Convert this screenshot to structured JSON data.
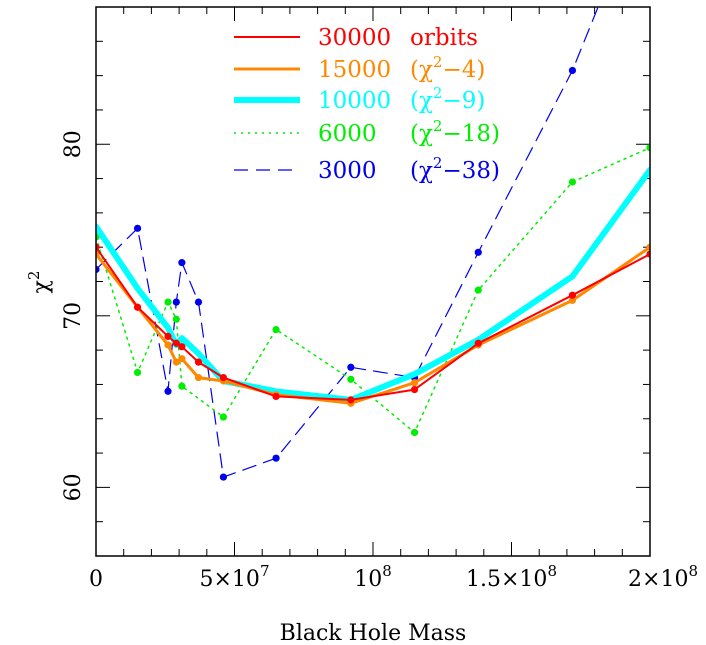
{
  "chart_data": {
    "type": "line",
    "title": "",
    "xlabel": "Black Hole Mass",
    "ylabel_base": "χ",
    "ylabel_sup": "2",
    "xlim": [
      0,
      200000000
    ],
    "ylim": [
      56,
      88
    ],
    "x_ticks": [
      {
        "value": 0,
        "base": "0",
        "exp": ""
      },
      {
        "value": 50000000,
        "base": "5×10",
        "exp": "7"
      },
      {
        "value": 100000000,
        "base": "10",
        "exp": "8"
      },
      {
        "value": 150000000,
        "base": "1.5×10",
        "exp": "8"
      },
      {
        "value": 200000000,
        "base": "2×10",
        "exp": "8"
      }
    ],
    "y_ticks": [
      {
        "value": 60,
        "label": "60"
      },
      {
        "value": 70,
        "label": "70"
      },
      {
        "value": 80,
        "label": "80"
      }
    ],
    "grid": false,
    "legend_position": "top-center",
    "series": [
      {
        "name": "30000 orbits",
        "label": "30000",
        "label_suffix": "orbits",
        "color": "#ff0000",
        "style": "solid",
        "width": 2,
        "markers": true,
        "x": [
          0,
          15000000,
          26000000,
          29000000,
          31000000,
          37000000,
          46000000,
          65000000,
          92000000,
          115000000,
          138000000,
          172000000,
          200000000
        ],
        "y": [
          74.0,
          70.5,
          68.8,
          68.4,
          68.2,
          67.3,
          66.4,
          65.3,
          65.1,
          65.7,
          68.4,
          71.2,
          73.6
        ]
      },
      {
        "name": "15000 (χ2−4)",
        "label": "15000",
        "label_suffix": "(χ",
        "label_sup": "2",
        "label_tail": "−4)",
        "color": "#ff8800",
        "style": "solid",
        "width": 3,
        "markers": true,
        "x": [
          0,
          15000000,
          26000000,
          29000000,
          31000000,
          37000000,
          46000000,
          65000000,
          92000000,
          115000000,
          138000000,
          172000000,
          200000000
        ],
        "y": [
          73.6,
          70.5,
          68.3,
          67.3,
          67.5,
          66.4,
          66.2,
          65.4,
          64.9,
          66.1,
          68.3,
          70.9,
          74.0
        ]
      },
      {
        "name": "10000 (χ2−9)",
        "label": "10000",
        "label_suffix": "(χ",
        "label_sup": "2",
        "label_tail": "−9)",
        "color": "#00ffff",
        "style": "solid",
        "width": 6,
        "markers": false,
        "x": [
          0,
          15000000,
          26000000,
          29000000,
          31000000,
          37000000,
          46000000,
          65000000,
          92000000,
          115000000,
          138000000,
          172000000,
          200000000
        ],
        "y": [
          75.2,
          71.6,
          69.3,
          68.3,
          68.7,
          67.8,
          66.2,
          65.6,
          65.1,
          66.6,
          68.6,
          72.3,
          78.5
        ]
      },
      {
        "name": "6000 (χ2−18)",
        "label": "6000",
        "label_suffix": "(χ",
        "label_sup": "2",
        "label_tail": "−18)",
        "color": "#00ee00",
        "style": "dotted",
        "width": 1.5,
        "markers": true,
        "x": [
          0,
          15000000,
          26000000,
          29000000,
          31000000,
          46000000,
          65000000,
          92000000,
          115000000,
          138000000,
          172000000,
          200000000
        ],
        "y": [
          74.6,
          66.7,
          70.8,
          69.8,
          65.9,
          64.1,
          69.2,
          66.3,
          63.2,
          71.5,
          77.8,
          79.8
        ]
      },
      {
        "name": "3000 (χ2−38)",
        "label": "3000",
        "label_suffix": "(χ",
        "label_sup": "2",
        "label_tail": "−38)",
        "color": "#0000ee",
        "style": "dashed",
        "width": 1.2,
        "markers": true,
        "x": [
          0,
          15000000,
          26000000,
          29000000,
          31000000,
          37000000,
          46000000,
          65000000,
          92000000,
          115000000,
          138000000,
          172000000,
          185000000
        ],
        "y": [
          72.7,
          75.1,
          65.6,
          70.8,
          73.1,
          70.8,
          60.6,
          61.7,
          67.0,
          66.4,
          73.7,
          84.3,
          89.5
        ]
      }
    ]
  }
}
